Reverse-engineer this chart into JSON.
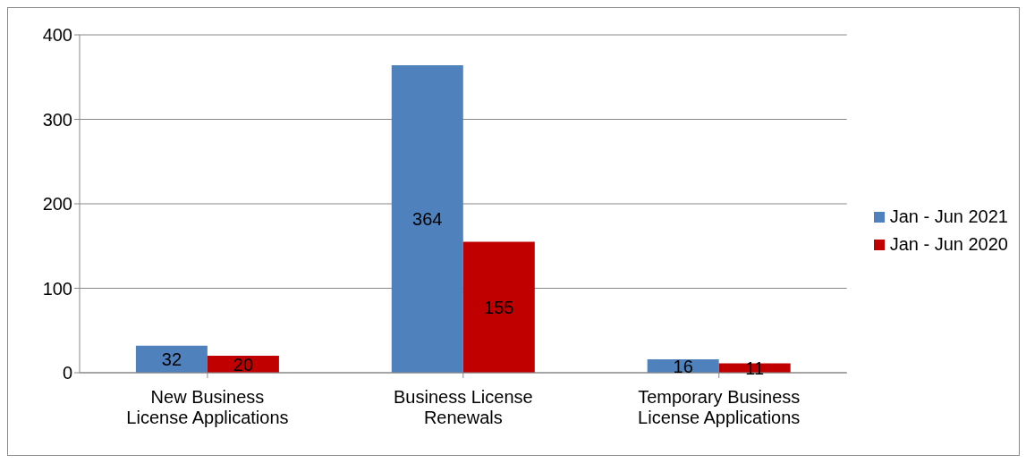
{
  "chart_data": {
    "type": "bar",
    "categories": [
      "New Business License Applications",
      "Business License Renewals",
      "Temporary Business License Applications"
    ],
    "series": [
      {
        "name": "Jan - Jun 2021",
        "color": "#4f81bd",
        "values": [
          32,
          364,
          16
        ]
      },
      {
        "name": "Jan - Jun 2020",
        "color": "#c00000",
        "values": [
          20,
          155,
          11
        ]
      }
    ],
    "ylim": [
      0,
      400
    ],
    "yticks": [
      0,
      100,
      200,
      300,
      400
    ],
    "grid": "y",
    "legend": "right",
    "data_labels": true
  }
}
